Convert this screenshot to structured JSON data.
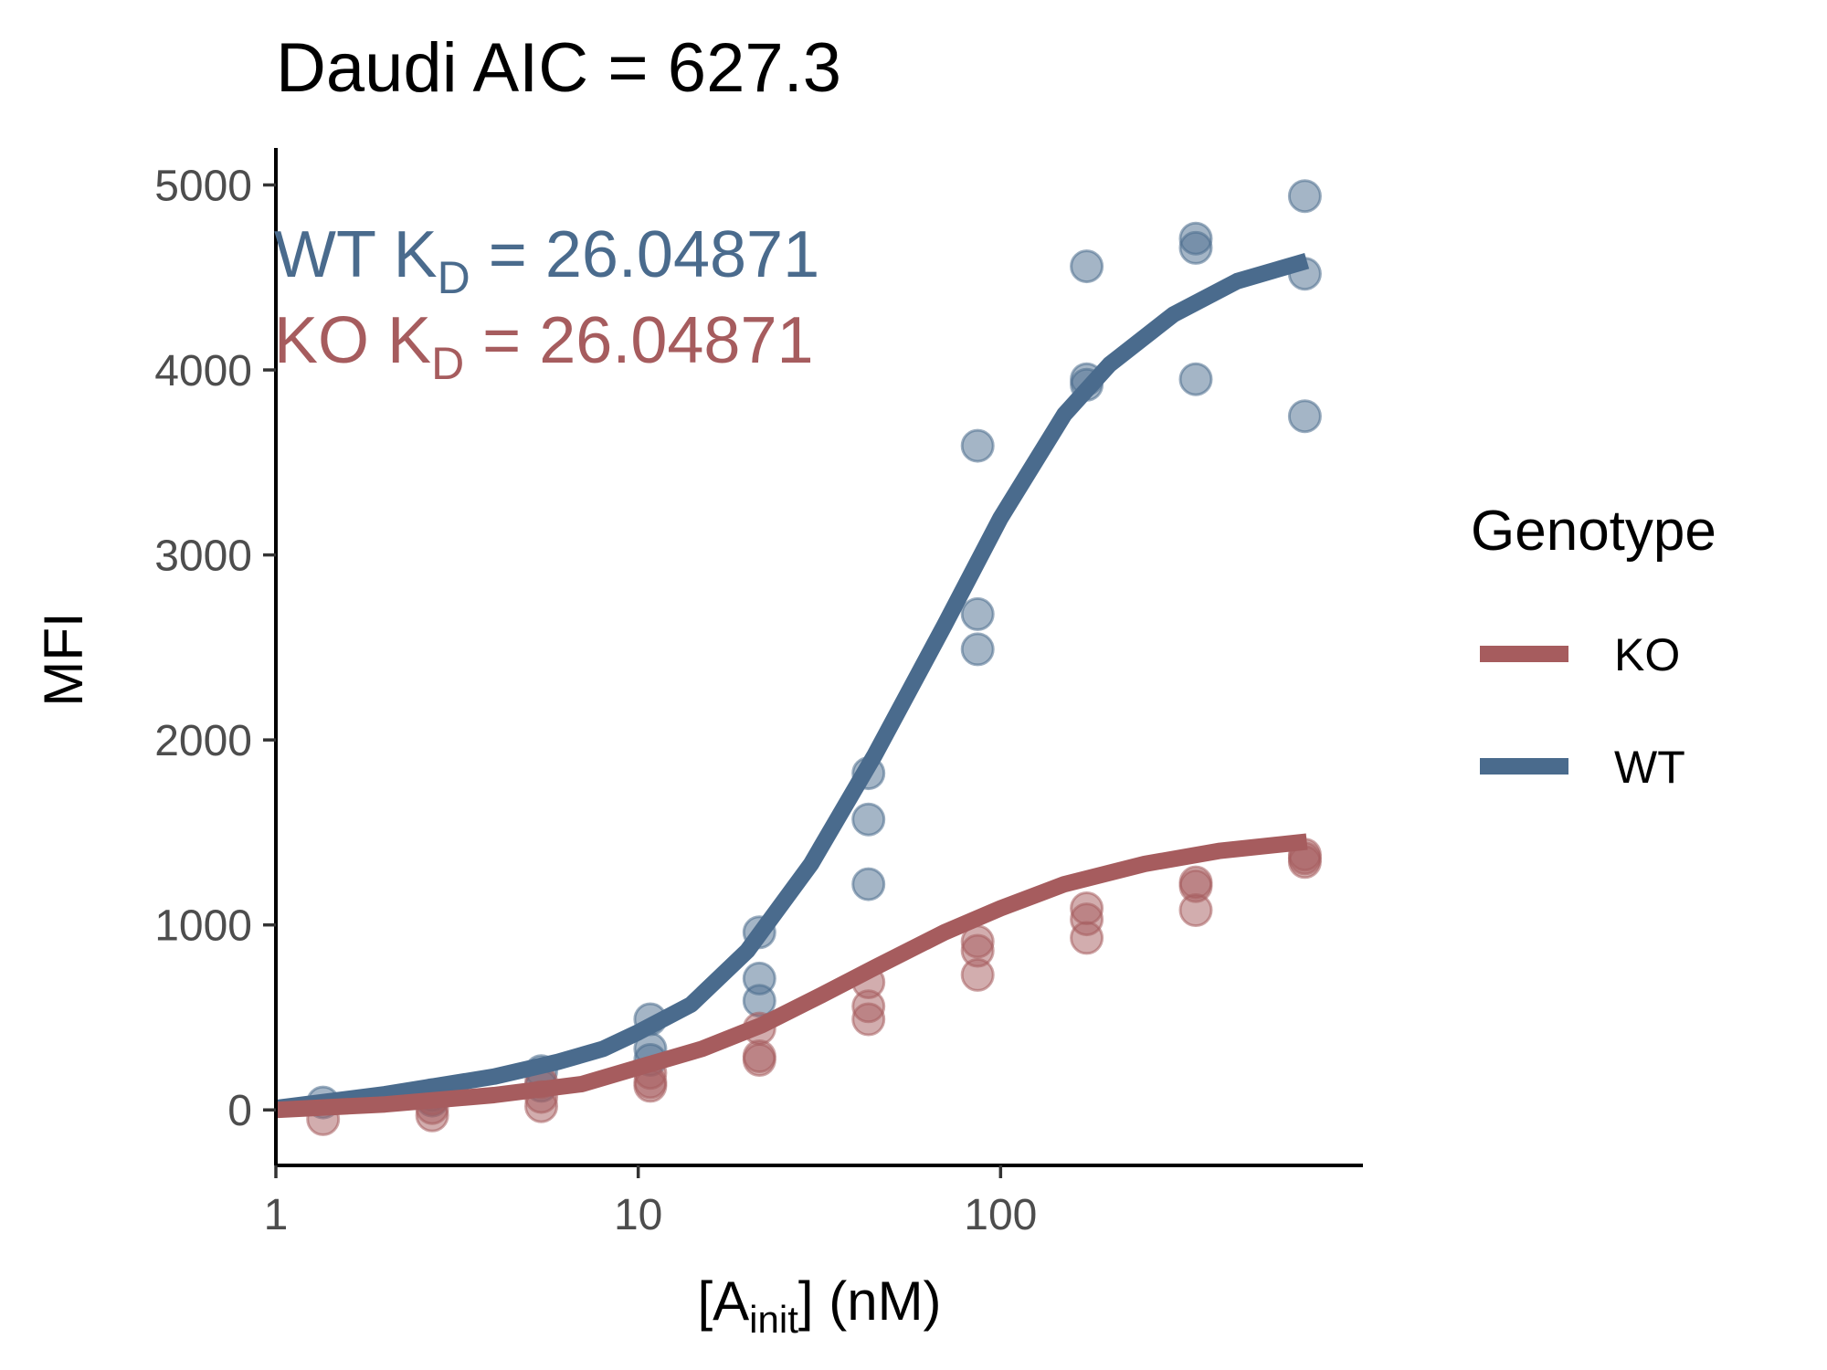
{
  "chart_data": {
    "type": "scatter",
    "title": "Daudi AIC =  627.3",
    "xlabel": {
      "main": "[A",
      "sub": "init",
      "tail": "] (nM)"
    },
    "ylabel": "MFI",
    "x_scale": "log10",
    "xlim": [
      1,
      1000
    ],
    "ylim": [
      -300,
      5200
    ],
    "x_ticks": [
      {
        "value": 1,
        "label": "1"
      },
      {
        "value": 10,
        "label": "10"
      },
      {
        "value": 100,
        "label": "100"
      }
    ],
    "y_ticks": [
      {
        "value": 0,
        "label": "0"
      },
      {
        "value": 1000,
        "label": "1000"
      },
      {
        "value": 2000,
        "label": "2000"
      },
      {
        "value": 3000,
        "label": "3000"
      },
      {
        "value": 4000,
        "label": "4000"
      },
      {
        "value": 5000,
        "label": "5000"
      }
    ],
    "grid": false,
    "legend": {
      "title": "Genotype",
      "position": "right",
      "entries": [
        {
          "name": "KO",
          "color": "#a65c5e"
        },
        {
          "name": "WT",
          "color": "#4a6b8d"
        }
      ]
    },
    "annotations": [
      {
        "series": "WT",
        "prefix": "WT  K",
        "sub": "D",
        "suffix": " = 26.04871",
        "color": "#4a6b8d"
      },
      {
        "series": "KO",
        "prefix": "KO  K",
        "sub": "D",
        "suffix": " = 26.04871",
        "color": "#a65c5e"
      }
    ],
    "series": [
      {
        "name": "WT",
        "color": "#4a6b8d",
        "points": [
          [
            1.35,
            40
          ],
          [
            2.7,
            80
          ],
          [
            2.7,
            50
          ],
          [
            5.4,
            210
          ],
          [
            5.4,
            130
          ],
          [
            10.8,
            490
          ],
          [
            10.8,
            330
          ],
          [
            10.8,
            270
          ],
          [
            21.6,
            960
          ],
          [
            21.6,
            710
          ],
          [
            21.6,
            590
          ],
          [
            43.2,
            1820
          ],
          [
            43.2,
            1570
          ],
          [
            43.2,
            1220
          ],
          [
            86.4,
            3590
          ],
          [
            86.4,
            2680
          ],
          [
            86.4,
            2490
          ],
          [
            172.8,
            4560
          ],
          [
            172.8,
            3950
          ],
          [
            172.8,
            3920
          ],
          [
            345.6,
            4710
          ],
          [
            345.6,
            4660
          ],
          [
            345.6,
            3950
          ],
          [
            691.2,
            4940
          ],
          [
            691.2,
            4520
          ],
          [
            691.2,
            3750
          ]
        ],
        "fit": [
          [
            1,
            10
          ],
          [
            2,
            85
          ],
          [
            4,
            180
          ],
          [
            6,
            260
          ],
          [
            8,
            330
          ],
          [
            10,
            420
          ],
          [
            14,
            570
          ],
          [
            20,
            860
          ],
          [
            30,
            1330
          ],
          [
            45,
            1920
          ],
          [
            70,
            2620
          ],
          [
            100,
            3200
          ],
          [
            150,
            3760
          ],
          [
            200,
            4030
          ],
          [
            300,
            4300
          ],
          [
            450,
            4480
          ],
          [
            700,
            4590
          ]
        ]
      },
      {
        "name": "KO",
        "color": "#a65c5e",
        "points": [
          [
            1.35,
            -50
          ],
          [
            2.7,
            60
          ],
          [
            2.7,
            10
          ],
          [
            2.7,
            -30
          ],
          [
            5.4,
            150
          ],
          [
            5.4,
            70
          ],
          [
            5.4,
            20
          ],
          [
            10.8,
            200
          ],
          [
            10.8,
            150
          ],
          [
            10.8,
            130
          ],
          [
            21.6,
            440
          ],
          [
            21.6,
            290
          ],
          [
            21.6,
            270
          ],
          [
            43.2,
            690
          ],
          [
            43.2,
            560
          ],
          [
            43.2,
            490
          ],
          [
            86.4,
            910
          ],
          [
            86.4,
            860
          ],
          [
            86.4,
            730
          ],
          [
            172.8,
            1090
          ],
          [
            172.8,
            1030
          ],
          [
            172.8,
            930
          ],
          [
            345.6,
            1230
          ],
          [
            345.6,
            1210
          ],
          [
            345.6,
            1080
          ],
          [
            691.2,
            1380
          ],
          [
            691.2,
            1360
          ],
          [
            691.2,
            1340
          ]
        ],
        "fit": [
          [
            1,
            0
          ],
          [
            2,
            30
          ],
          [
            4,
            80
          ],
          [
            7,
            140
          ],
          [
            10,
            230
          ],
          [
            15,
            330
          ],
          [
            22,
            460
          ],
          [
            32,
            620
          ],
          [
            45,
            770
          ],
          [
            70,
            960
          ],
          [
            100,
            1090
          ],
          [
            150,
            1220
          ],
          [
            250,
            1330
          ],
          [
            400,
            1400
          ],
          [
            700,
            1450
          ]
        ]
      }
    ]
  }
}
